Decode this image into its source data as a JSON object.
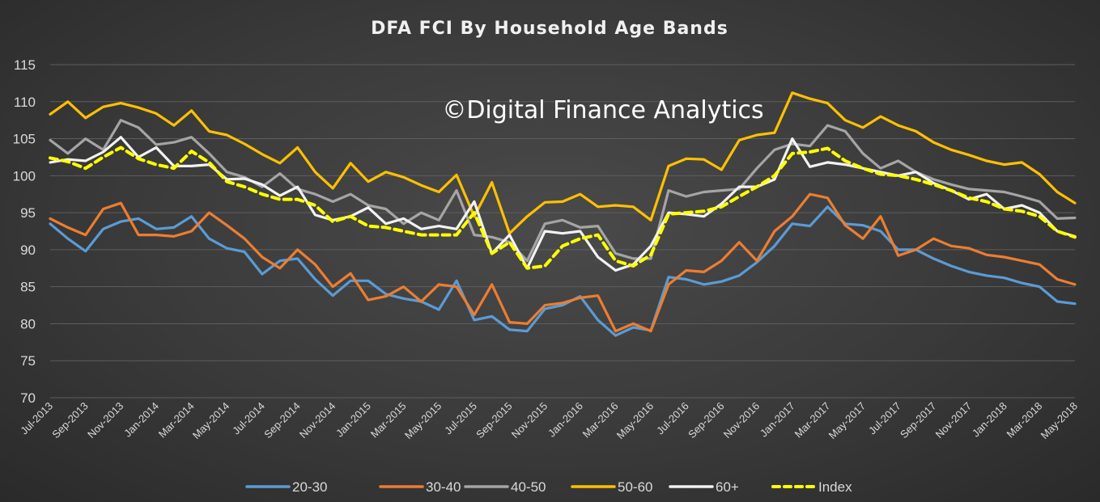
{
  "chart_data": {
    "type": "line",
    "title": "DFA FCI By Household Age Bands",
    "watermark": "©Digital Finance Analytics",
    "xlabel": "",
    "ylabel": "",
    "ylim": [
      70,
      115
    ],
    "y_ticks": [
      70,
      75,
      80,
      85,
      90,
      95,
      100,
      105,
      110,
      115
    ],
    "grid": true,
    "legend_position": "bottom",
    "x": [
      "Jul-2013",
      "Aug-2013",
      "Sep-2013",
      "Oct-2013",
      "Nov-2013",
      "Dec-2013",
      "Jan-2014",
      "Feb-2014",
      "Mar-2014",
      "Apr-2014",
      "May-2014",
      "Jun-2014",
      "Jul-2014",
      "Aug-2014",
      "Sep-2014",
      "Oct-2014",
      "Nov-2014",
      "Dec-2014",
      "Jan-2015",
      "Feb-2015",
      "Mar-2015",
      "Apr-2015",
      "May-2015",
      "Jun-2015",
      "Jul-2015",
      "Aug-2015",
      "Sep-2015",
      "Oct-2015",
      "Nov-2015",
      "Dec-2015",
      "Jan-2016",
      "Feb-2016",
      "Mar-2016",
      "Apr-2016",
      "May-2016",
      "Jun-2016",
      "Jul-2016",
      "Aug-2016",
      "Sep-2016",
      "Oct-2016",
      "Nov-2016",
      "Dec-2016",
      "Jan-2017",
      "Feb-2017",
      "Mar-2017",
      "Apr-2017",
      "May-2017",
      "Jun-2017",
      "Jul-2017",
      "Aug-2017",
      "Sep-2017",
      "Oct-2017",
      "Nov-2017",
      "Dec-2017",
      "Jan-2018",
      "Feb-2018",
      "Mar-2018",
      "Apr-2018",
      "May-2018"
    ],
    "x_tick_labels": [
      "Jul-2013",
      "Sep-2013",
      "Nov-2013",
      "Jan-2014",
      "Mar-2014",
      "May-2014",
      "Jul-2014",
      "Sep-2014",
      "Nov-2014",
      "Jan-2015",
      "Mar-2015",
      "May-2015",
      "Jul-2015",
      "Sep-2015",
      "Nov-2015",
      "Jan-2016",
      "Mar-2016",
      "May-2016",
      "Jul-2016",
      "Sep-2016",
      "Nov-2016",
      "Jan-2017",
      "Mar-2017",
      "May-2017",
      "Jul-2017",
      "Sep-2017",
      "Nov-2017",
      "Jan-2018",
      "Mar-2018",
      "May-2018"
    ],
    "series": [
      {
        "name": "20-30",
        "color": "#5b9bd5",
        "dash": false,
        "values": [
          93.5,
          91.5,
          89.8,
          92.8,
          93.8,
          94.2,
          92.8,
          93.0,
          94.5,
          91.5,
          90.2,
          89.7,
          86.7,
          88.5,
          88.8,
          86.0,
          83.8,
          85.8,
          85.8,
          84.0,
          83.4,
          83.0,
          81.9,
          85.8,
          80.5,
          81.0,
          79.2,
          79.0,
          82.0,
          82.5,
          83.7,
          80.5,
          78.4,
          79.5,
          79.1,
          86.3,
          86.0,
          85.3,
          85.7,
          86.5,
          88.3,
          90.5,
          93.5,
          93.2,
          95.8,
          93.5,
          93.3,
          92.5,
          90.0,
          90.0,
          88.8,
          87.8,
          87.0,
          86.5,
          86.2,
          85.5,
          85.0,
          83.0,
          82.7
        ]
      },
      {
        "name": "30-40",
        "color": "#ed7d31",
        "dash": false,
        "values": [
          94.2,
          93.0,
          92.0,
          95.5,
          96.3,
          92.0,
          92.0,
          91.8,
          92.5,
          95.0,
          93.3,
          91.5,
          89.0,
          87.5,
          90.0,
          88.0,
          85.0,
          86.8,
          83.2,
          83.7,
          85.0,
          83.0,
          85.3,
          85.0,
          81.2,
          85.3,
          80.2,
          80.0,
          82.5,
          82.8,
          83.5,
          83.8,
          79.0,
          80.0,
          79.0,
          85.3,
          87.2,
          87.0,
          88.5,
          91.0,
          88.5,
          92.5,
          94.5,
          97.5,
          97.0,
          93.3,
          91.5,
          94.5,
          89.2,
          90.0,
          91.5,
          90.5,
          90.2,
          89.3,
          89.0,
          88.5,
          88.0,
          86.0,
          85.3
        ]
      },
      {
        "name": "40-50",
        "color": "#a5a5a5",
        "dash": false,
        "values": [
          104.8,
          103.0,
          105.0,
          103.5,
          107.5,
          106.5,
          104.2,
          104.5,
          105.2,
          103.0,
          100.5,
          99.8,
          98.5,
          100.3,
          98.2,
          97.5,
          96.5,
          97.5,
          96.0,
          95.5,
          93.5,
          95.0,
          94.0,
          98.0,
          92.0,
          91.7,
          91.0,
          88.5,
          93.5,
          94.0,
          93.0,
          93.2,
          89.5,
          88.8,
          88.8,
          98.0,
          97.2,
          97.8,
          98.0,
          98.2,
          101.0,
          103.5,
          104.3,
          104.0,
          106.8,
          106.0,
          103.0,
          101.0,
          102.0,
          100.5,
          99.5,
          98.8,
          98.2,
          98.0,
          97.8,
          97.2,
          96.5,
          94.2,
          94.3
        ]
      },
      {
        "name": "50-60",
        "color": "#ffc000",
        "dash": false,
        "values": [
          108.3,
          110.0,
          107.8,
          109.3,
          109.8,
          109.2,
          108.4,
          106.8,
          108.8,
          106.0,
          105.5,
          104.3,
          102.9,
          101.7,
          103.8,
          100.5,
          98.3,
          101.7,
          99.2,
          100.5,
          99.8,
          98.7,
          97.8,
          100.1,
          94.5,
          99.1,
          92.2,
          94.5,
          96.4,
          96.5,
          97.5,
          95.8,
          96.0,
          95.8,
          94.0,
          101.3,
          102.3,
          102.2,
          100.8,
          104.8,
          105.5,
          105.8,
          111.2,
          110.4,
          109.8,
          107.5,
          106.5,
          108.0,
          106.8,
          106.0,
          104.5,
          103.5,
          102.8,
          102.0,
          101.5,
          101.8,
          100.2,
          97.8,
          96.3
        ]
      },
      {
        "name": "60+",
        "color": "#f2f2f2",
        "dash": false,
        "values": [
          101.8,
          102.2,
          102.0,
          103.2,
          105.2,
          102.5,
          103.8,
          101.3,
          101.3,
          101.5,
          99.5,
          99.6,
          98.8,
          97.3,
          98.5,
          94.7,
          94.0,
          94.5,
          95.7,
          93.5,
          94.2,
          92.8,
          93.2,
          92.8,
          96.5,
          89.5,
          92.0,
          87.5,
          92.5,
          92.2,
          92.5,
          89.0,
          87.2,
          88.0,
          90.5,
          95.0,
          94.8,
          94.5,
          96.2,
          98.5,
          98.5,
          99.5,
          105.0,
          101.2,
          101.8,
          101.5,
          101.0,
          100.5,
          100.0,
          100.5,
          99.0,
          98.0,
          96.8,
          97.5,
          95.5,
          96.0,
          95.0,
          92.5,
          91.8
        ]
      },
      {
        "name": "Index",
        "color": "#ffff00",
        "dash": true,
        "values": [
          102.4,
          101.9,
          101.0,
          102.5,
          103.8,
          102.3,
          101.5,
          101.0,
          103.3,
          101.8,
          99.2,
          98.5,
          97.5,
          96.8,
          96.8,
          96.0,
          93.8,
          94.5,
          93.2,
          93.0,
          92.5,
          92.0,
          92.0,
          92.0,
          95.0,
          89.5,
          91.0,
          87.5,
          87.8,
          90.5,
          91.5,
          92.0,
          88.5,
          87.8,
          89.3,
          94.8,
          95.0,
          95.2,
          95.8,
          97.2,
          98.5,
          100.0,
          103.0,
          103.2,
          103.7,
          102.0,
          101.0,
          100.2,
          100.0,
          99.5,
          98.8,
          98.0,
          97.0,
          96.5,
          95.5,
          95.2,
          94.5,
          92.5,
          91.7
        ]
      }
    ]
  }
}
